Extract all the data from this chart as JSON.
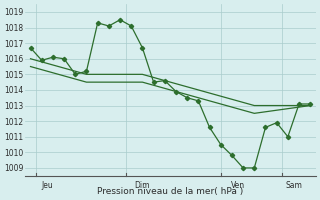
{
  "title": "Pression niveau de la mer( hPa )",
  "bg_color": "#d8eeee",
  "grid_color": "#aacccc",
  "line_color": "#2d6e2d",
  "ylim": [
    1008.5,
    1019.5
  ],
  "yticks": [
    1009,
    1010,
    1011,
    1012,
    1013,
    1014,
    1015,
    1016,
    1017,
    1018,
    1019
  ],
  "day_labels": [
    "Jeu",
    "Dim",
    "Ven",
    "Sam"
  ],
  "series1_x": [
    0,
    1,
    2,
    3,
    4,
    5,
    6,
    7,
    8,
    9,
    10,
    11,
    12,
    13,
    14,
    15,
    16,
    17,
    18,
    19,
    20,
    21,
    22,
    23,
    24,
    25
  ],
  "series1_y": [
    1016.7,
    1015.9,
    1016.1,
    1016.0,
    1015.0,
    1015.2,
    1018.3,
    1018.1,
    1018.5,
    1018.1,
    1016.7,
    1014.5,
    1014.6,
    1013.9,
    1013.5,
    1013.3,
    1011.6,
    1010.5,
    1009.8,
    1009.0,
    1009.0,
    1011.6,
    1011.9,
    1011.0,
    1013.1,
    1013.1
  ],
  "series2_x": [
    0,
    5,
    10,
    15,
    20,
    25
  ],
  "series2_y": [
    1016.0,
    1015.0,
    1015.0,
    1014.0,
    1013.0,
    1013.0
  ],
  "series3_x": [
    0,
    5,
    10,
    15,
    20,
    25
  ],
  "series3_y": [
    1015.5,
    1014.5,
    1014.5,
    1013.5,
    1012.5,
    1013.0
  ]
}
